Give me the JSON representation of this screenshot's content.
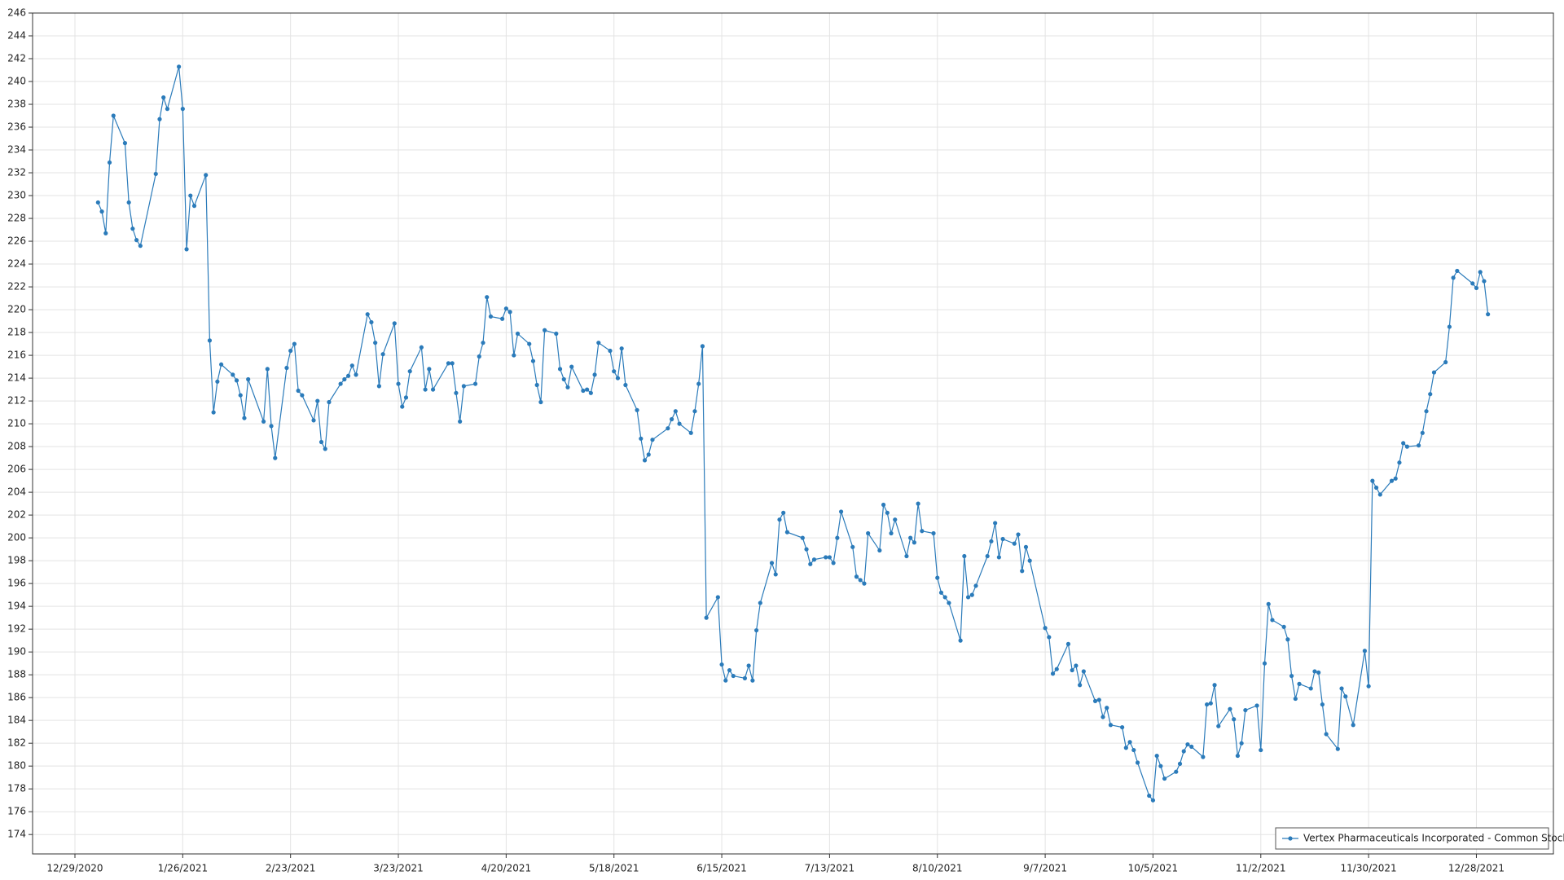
{
  "chart_data": {
    "type": "line",
    "x": [
      "2021-01-04",
      "2021-01-05",
      "2021-01-06",
      "2021-01-07",
      "2021-01-08",
      "2021-01-11",
      "2021-01-12",
      "2021-01-13",
      "2021-01-14",
      "2021-01-15",
      "2021-01-19",
      "2021-01-20",
      "2021-01-21",
      "2021-01-22",
      "2021-01-25",
      "2021-01-26",
      "2021-01-27",
      "2021-01-28",
      "2021-01-29",
      "2021-02-01",
      "2021-02-02",
      "2021-02-03",
      "2021-02-04",
      "2021-02-05",
      "2021-02-08",
      "2021-02-09",
      "2021-02-10",
      "2021-02-11",
      "2021-02-12",
      "2021-02-16",
      "2021-02-17",
      "2021-02-18",
      "2021-02-19",
      "2021-02-22",
      "2021-02-23",
      "2021-02-24",
      "2021-02-25",
      "2021-02-26",
      "2021-03-01",
      "2021-03-02",
      "2021-03-03",
      "2021-03-04",
      "2021-03-05",
      "2021-03-08",
      "2021-03-09",
      "2021-03-10",
      "2021-03-11",
      "2021-03-12",
      "2021-03-15",
      "2021-03-16",
      "2021-03-17",
      "2021-03-18",
      "2021-03-19",
      "2021-03-22",
      "2021-03-23",
      "2021-03-24",
      "2021-03-25",
      "2021-03-26",
      "2021-03-29",
      "2021-03-30",
      "2021-03-31",
      "2021-04-01",
      "2021-04-05",
      "2021-04-06",
      "2021-04-07",
      "2021-04-08",
      "2021-04-09",
      "2021-04-12",
      "2021-04-13",
      "2021-04-14",
      "2021-04-15",
      "2021-04-16",
      "2021-04-19",
      "2021-04-20",
      "2021-04-21",
      "2021-04-22",
      "2021-04-23",
      "2021-04-26",
      "2021-04-27",
      "2021-04-28",
      "2021-04-29",
      "2021-04-30",
      "2021-05-03",
      "2021-05-04",
      "2021-05-05",
      "2021-05-06",
      "2021-05-07",
      "2021-05-10",
      "2021-05-11",
      "2021-05-12",
      "2021-05-13",
      "2021-05-14",
      "2021-05-17",
      "2021-05-18",
      "2021-05-19",
      "2021-05-20",
      "2021-05-21",
      "2021-05-24",
      "2021-05-25",
      "2021-05-26",
      "2021-05-27",
      "2021-05-28",
      "2021-06-01",
      "2021-06-02",
      "2021-06-03",
      "2021-06-04",
      "2021-06-07",
      "2021-06-08",
      "2021-06-09",
      "2021-06-10",
      "2021-06-11",
      "2021-06-14",
      "2021-06-15",
      "2021-06-16",
      "2021-06-17",
      "2021-06-18",
      "2021-06-21",
      "2021-06-22",
      "2021-06-23",
      "2021-06-24",
      "2021-06-25",
      "2021-06-28",
      "2021-06-29",
      "2021-06-30",
      "2021-07-01",
      "2021-07-02",
      "2021-07-06",
      "2021-07-07",
      "2021-07-08",
      "2021-07-09",
      "2021-07-12",
      "2021-07-13",
      "2021-07-14",
      "2021-07-15",
      "2021-07-16",
      "2021-07-19",
      "2021-07-20",
      "2021-07-21",
      "2021-07-22",
      "2021-07-23",
      "2021-07-26",
      "2021-07-27",
      "2021-07-28",
      "2021-07-29",
      "2021-07-30",
      "2021-08-02",
      "2021-08-03",
      "2021-08-04",
      "2021-08-05",
      "2021-08-06",
      "2021-08-09",
      "2021-08-10",
      "2021-08-11",
      "2021-08-12",
      "2021-08-13",
      "2021-08-16",
      "2021-08-17",
      "2021-08-18",
      "2021-08-19",
      "2021-08-20",
      "2021-08-23",
      "2021-08-24",
      "2021-08-25",
      "2021-08-26",
      "2021-08-27",
      "2021-08-30",
      "2021-08-31",
      "2021-09-01",
      "2021-09-02",
      "2021-09-03",
      "2021-09-07",
      "2021-09-08",
      "2021-09-09",
      "2021-09-10",
      "2021-09-13",
      "2021-09-14",
      "2021-09-15",
      "2021-09-16",
      "2021-09-17",
      "2021-09-20",
      "2021-09-21",
      "2021-09-22",
      "2021-09-23",
      "2021-09-24",
      "2021-09-27",
      "2021-09-28",
      "2021-09-29",
      "2021-09-30",
      "2021-10-01",
      "2021-10-04",
      "2021-10-05",
      "2021-10-06",
      "2021-10-07",
      "2021-10-08",
      "2021-10-11",
      "2021-10-12",
      "2021-10-13",
      "2021-10-14",
      "2021-10-15",
      "2021-10-18",
      "2021-10-19",
      "2021-10-20",
      "2021-10-21",
      "2021-10-22",
      "2021-10-25",
      "2021-10-26",
      "2021-10-27",
      "2021-10-28",
      "2021-10-29",
      "2021-11-01",
      "2021-11-02",
      "2021-11-03",
      "2021-11-04",
      "2021-11-05",
      "2021-11-08",
      "2021-11-09",
      "2021-11-10",
      "2021-11-11",
      "2021-11-12",
      "2021-11-15",
      "2021-11-16",
      "2021-11-17",
      "2021-11-18",
      "2021-11-19",
      "2021-11-22",
      "2021-11-23",
      "2021-11-24",
      "2021-11-26",
      "2021-11-29",
      "2021-11-30",
      "2021-12-01",
      "2021-12-02",
      "2021-12-03",
      "2021-12-06",
      "2021-12-07",
      "2021-12-08",
      "2021-12-09",
      "2021-12-10",
      "2021-12-13",
      "2021-12-14",
      "2021-12-15",
      "2021-12-16",
      "2021-12-17",
      "2021-12-20",
      "2021-12-21",
      "2021-12-22",
      "2021-12-23",
      "2021-12-27",
      "2021-12-28",
      "2021-12-29",
      "2021-12-30",
      "2021-12-31"
    ],
    "series": [
      {
        "name": "Vertex Pharmaceuticals Incorporated - Common Stock",
        "color": "#2b7bba",
        "values": [
          229.4,
          228.6,
          226.7,
          232.9,
          237,
          234.6,
          229.4,
          227.1,
          226.1,
          225.6,
          231.9,
          236.7,
          238.6,
          237.6,
          241.3,
          237.6,
          225.3,
          230,
          229.1,
          231.8,
          217.3,
          211,
          213.7,
          215.2,
          214.3,
          213.8,
          212.5,
          210.5,
          213.9,
          210.2,
          214.8,
          209.8,
          207,
          214.9,
          216.4,
          217,
          212.9,
          212.5,
          210.3,
          212,
          208.4,
          207.8,
          211.9,
          213.5,
          213.9,
          214.2,
          215.1,
          214.3,
          219.6,
          218.9,
          217.1,
          213.3,
          216.1,
          218.8,
          213.5,
          211.5,
          212.3,
          214.6,
          216.7,
          213,
          214.8,
          213,
          215.3,
          215.3,
          212.7,
          210.2,
          213.3,
          213.5,
          215.9,
          217.1,
          221.1,
          219.4,
          219.2,
          220.1,
          219.8,
          216,
          217.9,
          217,
          215.5,
          213.4,
          211.9,
          218.2,
          217.9,
          214.8,
          213.9,
          213.2,
          215,
          212.9,
          213,
          212.7,
          214.3,
          217.1,
          216.4,
          214.6,
          214,
          216.6,
          213.4,
          211.2,
          208.7,
          206.8,
          207.3,
          208.6,
          209.6,
          210.4,
          211.1,
          210,
          209.2,
          211.1,
          213.5,
          216.8,
          193,
          194.8,
          188.9,
          187.5,
          188.4,
          187.9,
          187.7,
          188.8,
          187.5,
          191.9,
          194.3,
          197.8,
          196.8,
          201.6,
          202.2,
          200.5,
          200,
          199,
          197.7,
          198.1,
          198.3,
          198.3,
          197.8,
          200,
          202.3,
          199.2,
          196.6,
          196.3,
          196,
          200.4,
          198.9,
          202.9,
          202.2,
          200.4,
          201.6,
          198.4,
          200,
          199.6,
          203,
          200.6,
          200.4,
          196.5,
          195.2,
          194.8,
          194.3,
          191,
          198.4,
          194.8,
          195,
          195.8,
          198.4,
          199.7,
          201.3,
          198.3,
          199.9,
          199.5,
          200.3,
          197.1,
          199.2,
          198,
          192.1,
          191.3,
          188.1,
          188.5,
          190.7,
          188.4,
          188.8,
          187.1,
          188.3,
          185.7,
          185.8,
          184.3,
          185.1,
          183.6,
          183.4,
          181.6,
          182.1,
          181.4,
          180.3,
          177.4,
          177,
          180.9,
          180,
          178.9,
          179.5,
          180.2,
          181.3,
          181.9,
          181.7,
          180.8,
          185.4,
          185.5,
          187.1,
          183.5,
          185,
          184.1,
          180.9,
          182,
          184.9,
          185.3,
          181.4,
          189,
          194.2,
          192.8,
          192.2,
          191.1,
          187.9,
          185.9,
          187.2,
          186.8,
          188.3,
          188.2,
          185.4,
          182.8,
          181.5,
          186.8,
          186.1,
          183.6,
          190.1,
          187,
          205,
          204.4,
          203.8,
          205,
          205.2,
          206.6,
          208.3,
          208,
          208.1,
          209.2,
          211.1,
          212.6,
          214.5,
          215.4,
          218.5,
          222.8,
          223.4,
          222.3,
          221.9,
          223.3,
          222.5,
          219.6
        ]
      }
    ],
    "xlim": [
      "2020-12-18",
      "2022-01-17"
    ],
    "xticks": [
      {
        "value": "2020-12-29",
        "label": "12/29/2020"
      },
      {
        "value": "2021-01-26",
        "label": "1/26/2021"
      },
      {
        "value": "2021-02-23",
        "label": "2/23/2021"
      },
      {
        "value": "2021-03-23",
        "label": "3/23/2021"
      },
      {
        "value": "2021-04-20",
        "label": "4/20/2021"
      },
      {
        "value": "2021-05-18",
        "label": "5/18/2021"
      },
      {
        "value": "2021-06-15",
        "label": "6/15/2021"
      },
      {
        "value": "2021-07-13",
        "label": "7/13/2021"
      },
      {
        "value": "2021-08-10",
        "label": "8/10/2021"
      },
      {
        "value": "2021-09-07",
        "label": "9/7/2021"
      },
      {
        "value": "2021-10-05",
        "label": "10/5/2021"
      },
      {
        "value": "2021-11-02",
        "label": "11/2/2021"
      },
      {
        "value": "2021-11-30",
        "label": "11/30/2021"
      },
      {
        "value": "2021-12-28",
        "label": "12/28/2021"
      }
    ],
    "ylim": [
      172.3,
      246
    ],
    "yticks": [
      174,
      176,
      178,
      180,
      182,
      184,
      186,
      188,
      190,
      192,
      194,
      196,
      198,
      200,
      202,
      204,
      206,
      208,
      210,
      212,
      214,
      216,
      218,
      220,
      222,
      224,
      226,
      228,
      230,
      232,
      234,
      236,
      238,
      240,
      242,
      244,
      246
    ],
    "grid": true,
    "legend": "lower right"
  }
}
